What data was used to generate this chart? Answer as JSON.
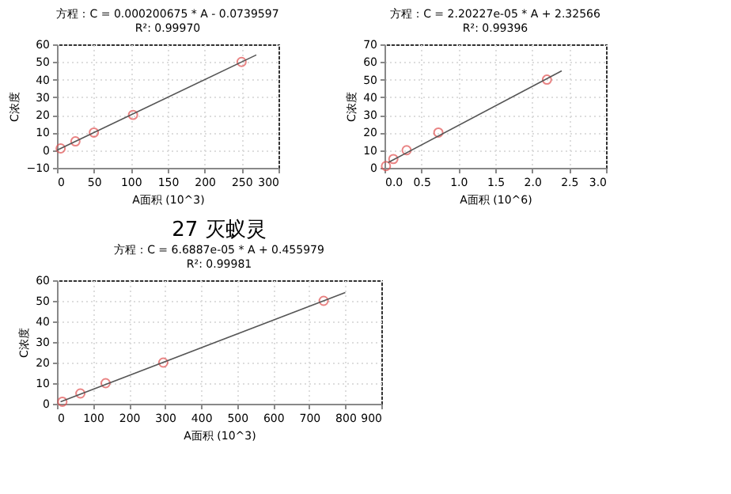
{
  "chart_data": [
    {
      "type": "scatter",
      "annotations": [
        "方程：C = 0.000200675 * A - 0.0739597",
        "R²: 0.99970"
      ],
      "xlabel": "A面积 (10^3)",
      "ylabel": "C浓度",
      "xlim": [
        0,
        300
      ],
      "xticks": [
        0,
        50,
        100,
        150,
        200,
        250,
        300
      ],
      "ylim": [
        -10,
        60
      ],
      "yticks": [
        -10,
        0,
        10,
        20,
        30,
        40,
        50,
        60
      ],
      "grid": true,
      "marker": "circle",
      "series": [
        {
          "type": "scatter",
          "color": "#e05050",
          "x": [
            5,
            25,
            50,
            103,
            250
          ],
          "values": [
            1,
            5,
            10,
            20,
            50
          ]
        },
        {
          "type": "line",
          "color": "#555555",
          "marker": "none",
          "line_style": "solid",
          "x": [
            0,
            270
          ],
          "values": [
            0,
            54
          ]
        }
      ]
    },
    {
      "type": "scatter",
      "annotations": [
        "方程：C = 2.20227e-05 * A + 2.32566",
        "R²: 0.99396"
      ],
      "xlabel": "A面积 (10^6)",
      "ylabel": "C浓度",
      "xlim": [
        0,
        3
      ],
      "xticks": [
        {
          "value": 0,
          "label": "0.0"
        },
        0.5,
        {
          "value": 1,
          "label": "1.0"
        },
        1.5,
        {
          "value": 2,
          "label": "2.0"
        },
        2.5,
        {
          "value": 3,
          "label": "3.0"
        }
      ],
      "ylim": [
        0,
        70
      ],
      "yticks": [
        0,
        10,
        20,
        30,
        40,
        50,
        60,
        70
      ],
      "grid": true,
      "marker": "circle",
      "series": [
        {
          "type": "scatter",
          "color": "#e05050",
          "x": [
            0.02,
            0.12,
            0.3,
            0.73,
            2.2
          ],
          "values": [
            1,
            5,
            10,
            20,
            50
          ]
        },
        {
          "type": "line",
          "color": "#555555",
          "marker": "none",
          "line_style": "solid",
          "x": [
            0.05,
            2.4
          ],
          "values": [
            3,
            55
          ]
        }
      ]
    },
    {
      "type": "scatter",
      "title": "27 灭蚁灵",
      "annotations": [
        "方程：C = 6.6887e-05 * A + 0.455979",
        "R²: 0.99981"
      ],
      "xlabel": "A面积 (10^3)",
      "ylabel": "C浓度",
      "xlim": [
        0,
        900
      ],
      "xticks": [
        0,
        100,
        200,
        300,
        400,
        500,
        600,
        700,
        800,
        900
      ],
      "ylim": [
        0,
        60
      ],
      "yticks": [
        0,
        10,
        20,
        30,
        40,
        50,
        60
      ],
      "grid": true,
      "marker": "circle",
      "series": [
        {
          "type": "scatter",
          "color": "#e05050",
          "x": [
            15,
            65,
            135,
            295,
            740
          ],
          "values": [
            1,
            5,
            10,
            20,
            50
          ]
        },
        {
          "type": "line",
          "color": "#555555",
          "marker": "none",
          "line_style": "solid",
          "x": [
            10,
            800
          ],
          "values": [
            1,
            54
          ]
        }
      ]
    }
  ]
}
